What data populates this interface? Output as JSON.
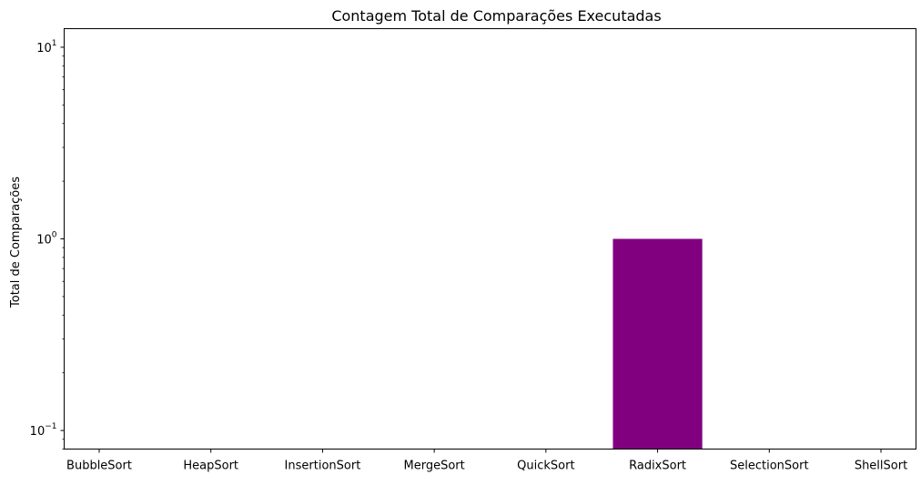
{
  "chart_data": {
    "type": "bar",
    "title": "Contagem Total de Comparações Executadas",
    "xlabel": "",
    "ylabel": "Total de Comparações",
    "yscale": "log",
    "ylim": [
      0.08,
      12.5
    ],
    "yticks": [
      {
        "value": 0.1,
        "base": "10",
        "exp": "−1"
      },
      {
        "value": 1,
        "base": "10",
        "exp": "0"
      },
      {
        "value": 10,
        "base": "10",
        "exp": "1"
      }
    ],
    "categories": [
      "BubbleSort",
      "HeapSort",
      "InsertionSort",
      "MergeSort",
      "QuickSort",
      "RadixSort",
      "SelectionSort",
      "ShellSort"
    ],
    "values": [
      0,
      0,
      0,
      0,
      0,
      1,
      0,
      0
    ],
    "bar_color": "#800080",
    "grid": false,
    "legend": "none"
  }
}
